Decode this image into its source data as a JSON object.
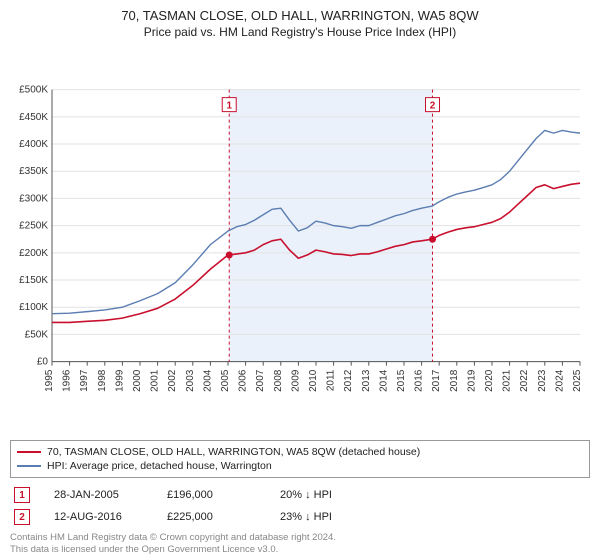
{
  "title_line1": "70, TASMAN CLOSE, OLD HALL, WARRINGTON, WA5 8QW",
  "title_line2": "Price paid vs. HM Land Registry's House Price Index (HPI)",
  "chart": {
    "type": "line",
    "background_color": "#ffffff",
    "band_color": "#eaf1fb",
    "grid_color": "#e2e2e2",
    "axis_color": "#555555",
    "tick_font_size": 10,
    "y": {
      "min": 0,
      "max": 500000,
      "step": 50000,
      "prefix": "£",
      "suffix": "K",
      "divisor": 1000,
      "ticks": [
        0,
        50000,
        100000,
        150000,
        200000,
        250000,
        300000,
        350000,
        400000,
        450000,
        500000
      ]
    },
    "x": {
      "min": 1995,
      "max": 2025,
      "ticks": [
        1995,
        1996,
        1997,
        1998,
        1999,
        2000,
        2001,
        2002,
        2003,
        2004,
        2005,
        2006,
        2007,
        2008,
        2009,
        2010,
        2011,
        2012,
        2013,
        2014,
        2015,
        2016,
        2017,
        2018,
        2019,
        2020,
        2021,
        2022,
        2023,
        2024,
        2025
      ]
    },
    "series": [
      {
        "name": "70, TASMAN CLOSE, OLD HALL, WARRINGTON, WA5 8QW (detached house)",
        "color": "#c8102e",
        "line_width": 1.6,
        "points": [
          [
            1995,
            72000
          ],
          [
            1996,
            72000
          ],
          [
            1997,
            74000
          ],
          [
            1998,
            76000
          ],
          [
            1999,
            80000
          ],
          [
            2000,
            88000
          ],
          [
            2001,
            98000
          ],
          [
            2002,
            115000
          ],
          [
            2003,
            140000
          ],
          [
            2004,
            170000
          ],
          [
            2005,
            196000
          ],
          [
            2005.5,
            198000
          ],
          [
            2006,
            200000
          ],
          [
            2006.5,
            205000
          ],
          [
            2007,
            215000
          ],
          [
            2007.5,
            222000
          ],
          [
            2008,
            225000
          ],
          [
            2008.5,
            205000
          ],
          [
            2009,
            190000
          ],
          [
            2009.5,
            196000
          ],
          [
            2010,
            205000
          ],
          [
            2010.5,
            202000
          ],
          [
            2011,
            198000
          ],
          [
            2011.5,
            197000
          ],
          [
            2012,
            195000
          ],
          [
            2012.5,
            198000
          ],
          [
            2013,
            198000
          ],
          [
            2013.5,
            202000
          ],
          [
            2014,
            207000
          ],
          [
            2014.5,
            212000
          ],
          [
            2015,
            215000
          ],
          [
            2015.5,
            220000
          ],
          [
            2016,
            222000
          ],
          [
            2016.6,
            225000
          ],
          [
            2017,
            232000
          ],
          [
            2017.5,
            238000
          ],
          [
            2018,
            243000
          ],
          [
            2018.5,
            246000
          ],
          [
            2019,
            248000
          ],
          [
            2019.5,
            252000
          ],
          [
            2020,
            256000
          ],
          [
            2020.5,
            263000
          ],
          [
            2021,
            275000
          ],
          [
            2021.5,
            290000
          ],
          [
            2022,
            305000
          ],
          [
            2022.5,
            320000
          ],
          [
            2023,
            325000
          ],
          [
            2023.5,
            318000
          ],
          [
            2024,
            322000
          ],
          [
            2024.5,
            326000
          ],
          [
            2025,
            328000
          ]
        ]
      },
      {
        "name": "HPI: Average price, detached house, Warrington",
        "color": "#5b7db1",
        "line_width": 1.4,
        "points": [
          [
            1995,
            88000
          ],
          [
            1996,
            89000
          ],
          [
            1997,
            92000
          ],
          [
            1998,
            95000
          ],
          [
            1999,
            100000
          ],
          [
            2000,
            112000
          ],
          [
            2001,
            125000
          ],
          [
            2002,
            145000
          ],
          [
            2003,
            178000
          ],
          [
            2004,
            215000
          ],
          [
            2005,
            240000
          ],
          [
            2005.5,
            248000
          ],
          [
            2006,
            252000
          ],
          [
            2006.5,
            260000
          ],
          [
            2007,
            270000
          ],
          [
            2007.5,
            280000
          ],
          [
            2008,
            282000
          ],
          [
            2008.5,
            260000
          ],
          [
            2009,
            240000
          ],
          [
            2009.5,
            246000
          ],
          [
            2010,
            258000
          ],
          [
            2010.5,
            255000
          ],
          [
            2011,
            250000
          ],
          [
            2011.5,
            248000
          ],
          [
            2012,
            245000
          ],
          [
            2012.5,
            250000
          ],
          [
            2013,
            250000
          ],
          [
            2013.5,
            256000
          ],
          [
            2014,
            262000
          ],
          [
            2014.5,
            268000
          ],
          [
            2015,
            272000
          ],
          [
            2015.5,
            278000
          ],
          [
            2016,
            282000
          ],
          [
            2016.6,
            286000
          ],
          [
            2017,
            294000
          ],
          [
            2017.5,
            302000
          ],
          [
            2018,
            308000
          ],
          [
            2018.5,
            312000
          ],
          [
            2019,
            315000
          ],
          [
            2019.5,
            320000
          ],
          [
            2020,
            325000
          ],
          [
            2020.5,
            335000
          ],
          [
            2021,
            350000
          ],
          [
            2021.5,
            370000
          ],
          [
            2022,
            390000
          ],
          [
            2022.5,
            410000
          ],
          [
            2023,
            425000
          ],
          [
            2023.5,
            420000
          ],
          [
            2024,
            425000
          ],
          [
            2024.5,
            422000
          ],
          [
            2025,
            420000
          ]
        ]
      }
    ],
    "sale_markers": [
      {
        "num": "1",
        "year": 2005.07,
        "price": 196000,
        "box_y_above": 34
      },
      {
        "num": "2",
        "year": 2016.62,
        "price": 225000,
        "box_y_above": 34
      }
    ]
  },
  "legend": {
    "border_color": "#999999",
    "items": [
      {
        "color": "#c8102e",
        "label": "70, TASMAN CLOSE, OLD HALL, WARRINGTON, WA5 8QW (detached house)"
      },
      {
        "color": "#5b7db1",
        "label": "HPI: Average price, detached house, Warrington"
      }
    ]
  },
  "sales": [
    {
      "num": "1",
      "date": "28-JAN-2005",
      "price": "£196,000",
      "vs_hpi": "20% ↓ HPI"
    },
    {
      "num": "2",
      "date": "12-AUG-2016",
      "price": "£225,000",
      "vs_hpi": "23% ↓ HPI"
    }
  ],
  "footer_line1": "Contains HM Land Registry data © Crown copyright and database right 2024.",
  "footer_line2": "This data is licensed under the Open Government Licence v3.0."
}
